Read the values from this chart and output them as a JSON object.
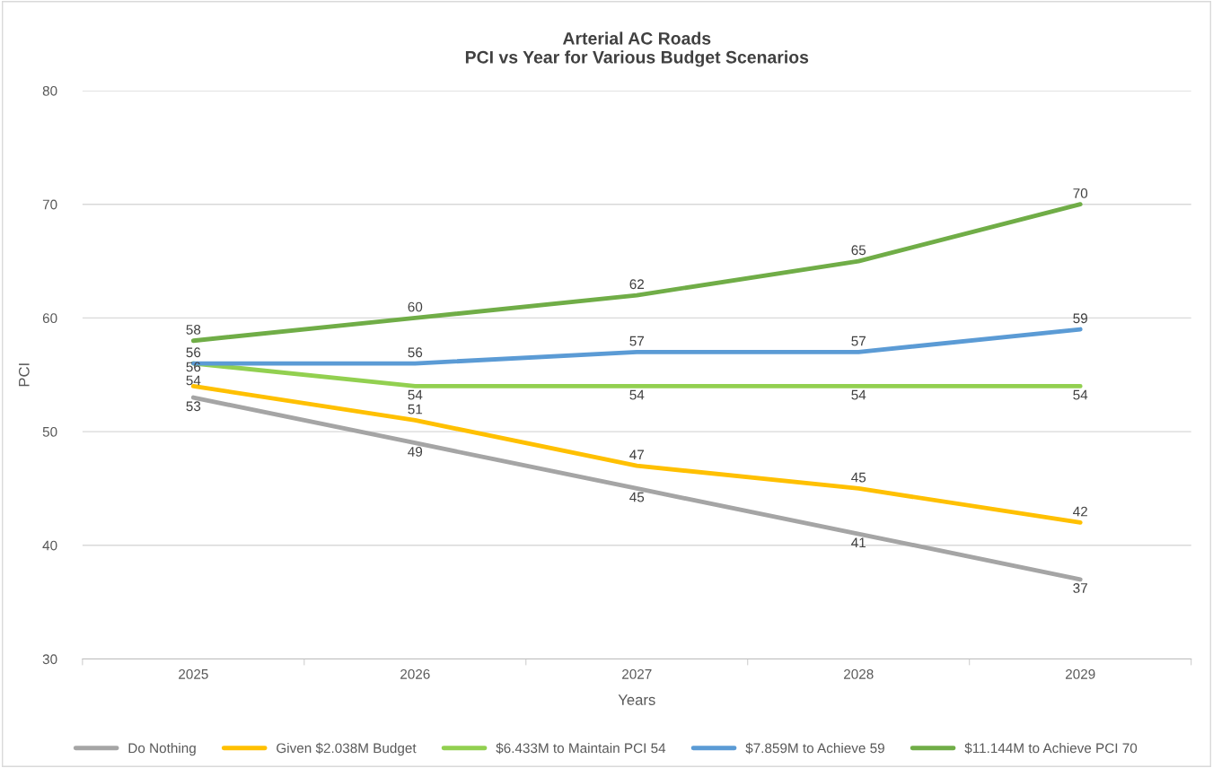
{
  "chart_data": {
    "type": "line",
    "title": "Arterial AC Roads\nPCI vs Year for Various Budget Scenarios",
    "xlabel": "Years",
    "ylabel": "PCI",
    "categories": [
      "2025",
      "2026",
      "2027",
      "2028",
      "2029"
    ],
    "series": [
      {
        "name": "Do Nothing",
        "color": "#a5a5a5",
        "values": [
          53,
          49,
          45,
          41,
          37
        ]
      },
      {
        "name": "Given $2.038M Budget",
        "color": "#ffc000",
        "values": [
          54,
          51,
          47,
          45,
          42
        ]
      },
      {
        "name": "$6.433M to Maintain PCI 54",
        "color": "#92d050",
        "values": [
          56,
          54,
          54,
          54,
          54
        ]
      },
      {
        "name": "$7.859M to Achieve 59",
        "color": "#5b9bd5",
        "values": [
          56,
          56,
          57,
          57,
          59
        ]
      },
      {
        "name": "$11.144M to Achieve PCI 70",
        "color": "#70ad47",
        "values": [
          58,
          60,
          62,
          65,
          70
        ]
      }
    ],
    "ylim": [
      30,
      80
    ],
    "yticks": [
      30,
      40,
      50,
      60,
      70,
      80
    ],
    "grid": "y",
    "legend": "bottom",
    "data_labels": true,
    "marker": "none",
    "line_style": "solid"
  }
}
